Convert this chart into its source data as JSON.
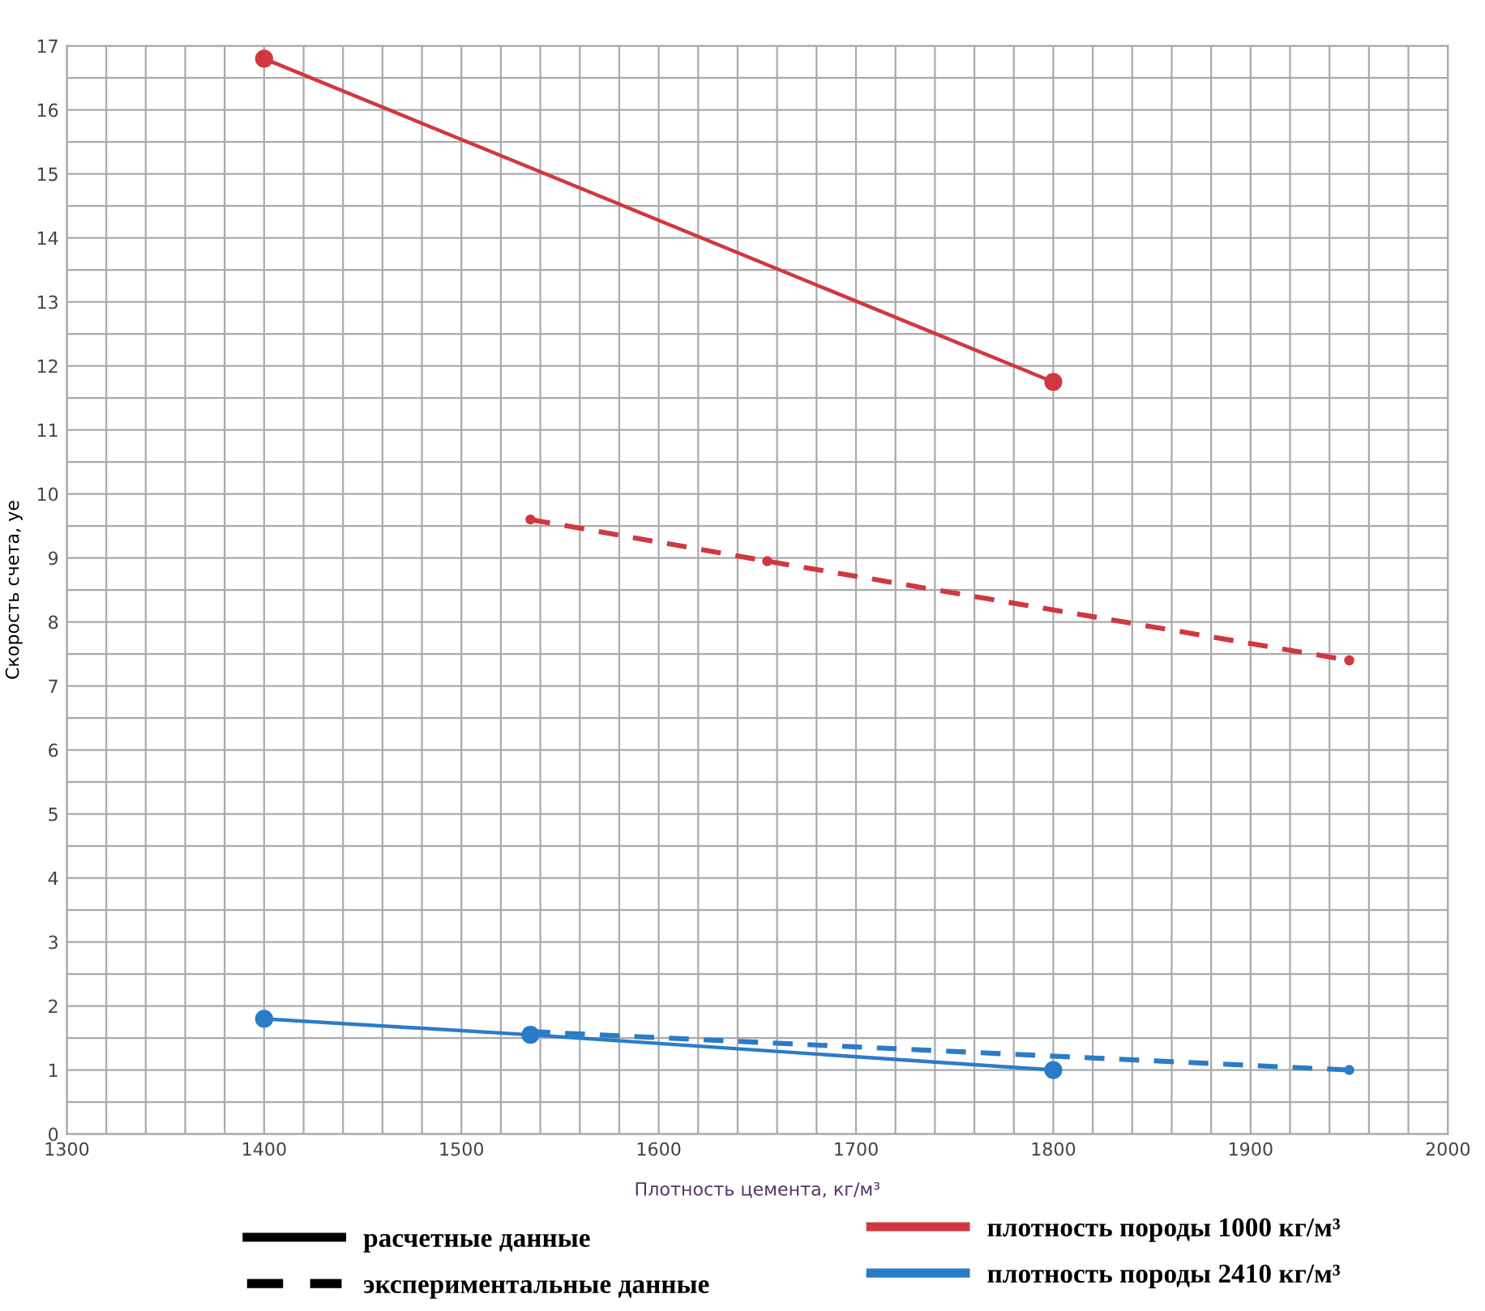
{
  "chart_data": {
    "type": "line",
    "xlabel": "Плотность цемента, кг/м³",
    "ylabel": "Скорость счета, уе",
    "xlim": [
      1300,
      2000
    ],
    "ylim": [
      0,
      17
    ],
    "xticks": [
      1300,
      {
        "value": 1320,
        "label": null
      },
      {
        "value": 1340,
        "label": null
      },
      {
        "value": 1360,
        "label": null
      },
      {
        "value": 1380,
        "label": null
      },
      1400,
      {
        "value": 1420,
        "label": null
      },
      {
        "value": 1440,
        "label": null
      },
      {
        "value": 1460,
        "label": null
      },
      {
        "value": 1480,
        "label": null
      },
      1500,
      {
        "value": 1520,
        "label": null
      },
      {
        "value": 1540,
        "label": null
      },
      {
        "value": 1560,
        "label": null
      },
      {
        "value": 1580,
        "label": null
      },
      1600,
      {
        "value": 1620,
        "label": null
      },
      {
        "value": 1640,
        "label": null
      },
      {
        "value": 1660,
        "label": null
      },
      {
        "value": 1680,
        "label": null
      },
      1700,
      {
        "value": 1720,
        "label": null
      },
      {
        "value": 1740,
        "label": null
      },
      {
        "value": 1760,
        "label": null
      },
      {
        "value": 1780,
        "label": null
      },
      1800,
      {
        "value": 1820,
        "label": null
      },
      {
        "value": 1840,
        "label": null
      },
      {
        "value": 1860,
        "label": null
      },
      {
        "value": 1880,
        "label": null
      },
      1900,
      {
        "value": 1920,
        "label": null
      },
      {
        "value": 1940,
        "label": null
      },
      {
        "value": 1960,
        "label": null
      },
      {
        "value": 1980,
        "label": null
      },
      2000
    ],
    "yticks": [
      0,
      {
        "value": 0.5,
        "label": null
      },
      1,
      {
        "value": 1.5,
        "label": null
      },
      2,
      {
        "value": 2.5,
        "label": null
      },
      3,
      {
        "value": 3.5,
        "label": null
      },
      4,
      {
        "value": 4.5,
        "label": null
      },
      5,
      {
        "value": 5.5,
        "label": null
      },
      6,
      {
        "value": 6.5,
        "label": null
      },
      7,
      {
        "value": 7.5,
        "label": null
      },
      8,
      {
        "value": 8.5,
        "label": null
      },
      9,
      {
        "value": 9.5,
        "label": null
      },
      10,
      {
        "value": 10.5,
        "label": null
      },
      11,
      {
        "value": 11.5,
        "label": null
      },
      12,
      {
        "value": 12.5,
        "label": null
      },
      13,
      {
        "value": 13.5,
        "label": null
      },
      14,
      {
        "value": 14.5,
        "label": null
      },
      15,
      {
        "value": 15.5,
        "label": null
      },
      16,
      {
        "value": 16.5,
        "label": null
      },
      17
    ],
    "grid": true,
    "marker": "circle",
    "series": [
      {
        "color": "#d0383f",
        "line_style": "solid",
        "x": [
          1400,
          1800
        ],
        "values": [
          16.8,
          11.75
        ]
      },
      {
        "color": "#d0383f",
        "line_style": "dashed",
        "x": [
          1535,
          1655,
          1950
        ],
        "values": [
          9.6,
          8.95,
          7.4
        ]
      },
      {
        "color": "#2a7cc7",
        "line_style": "solid",
        "x": [
          1400,
          1535,
          1800
        ],
        "values": [
          1.8,
          1.55,
          1.0
        ]
      },
      {
        "color": "#2a7cc7",
        "line_style": "dashed",
        "x": [
          1535,
          1950
        ],
        "values": [
          1.6,
          1.0
        ]
      }
    ],
    "annotations": [
      "расчетные данные",
      "экспериментальные данные",
      "плотность породы 1000 кг/м³",
      "плотность породы 2410 кг/м³"
    ]
  }
}
